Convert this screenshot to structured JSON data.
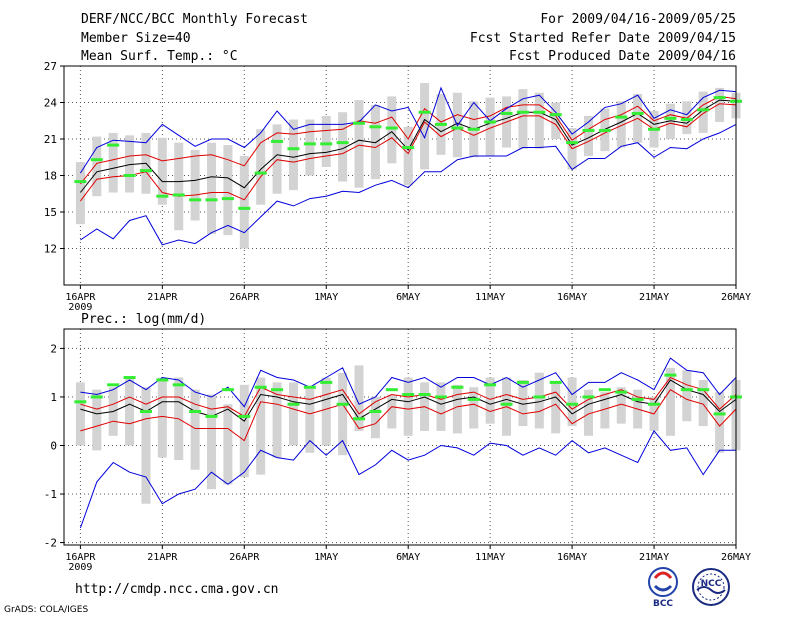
{
  "header": {
    "title": "DERF/NCC/BCC Monthly Forecast",
    "member": "Member Size=40",
    "variable": "Mean Surf. Temp.: °C",
    "period": "For 2009/04/16-2009/05/25",
    "started": "Fcst Started Refer Date 2009/04/15",
    "produced": "Fcst Produced Date 2009/04/16"
  },
  "footer": {
    "url": "http://cmdp.ncc.cma.gov.cn",
    "credit": "GrADS: COLA/IGES",
    "logo_left_text": "BCC",
    "logo_right_text": "NCC"
  },
  "colors": {
    "box": "#d3d3d3",
    "mean": "#000000",
    "spread": "#e00000",
    "envelope": "#0000dd",
    "observed": "#33ee33"
  },
  "chart_data": [
    {
      "type": "line",
      "title": "Mean Surf. Temp.: °C",
      "x_tick_labels": [
        "16APR",
        "21APR",
        "26APR",
        "1MAY",
        "6MAY",
        "11MAY",
        "16MAY",
        "21MAY",
        "26MAY"
      ],
      "x_year_label": "2009",
      "x_tick_days": [
        0,
        5,
        10,
        15,
        20,
        25,
        30,
        35,
        40
      ],
      "xlim": [
        -1,
        40
      ],
      "ylim": [
        9,
        27
      ],
      "y_ticks": [
        12,
        15,
        18,
        21,
        24,
        27
      ],
      "grid": true,
      "box_low": [
        14.0,
        16.3,
        16.6,
        16.6,
        16.5,
        15.6,
        13.5,
        14.3,
        13.2,
        13.1,
        12.0,
        15.6,
        16.5,
        16.8,
        18.0,
        18.7,
        17.5,
        17.0,
        17.7,
        19.0,
        17.2,
        18.5,
        19.7,
        19.5,
        19.5,
        19.6,
        20.3,
        20.2,
        20.2,
        21.0,
        18.5,
        19.6,
        20.0,
        20.3,
        20.7,
        20.3,
        21.0,
        21.4,
        21.5,
        22.4,
        22.7
      ],
      "box_high": [
        19.1,
        21.2,
        21.5,
        21.3,
        21.5,
        21.1,
        20.7,
        20.1,
        20.7,
        20.5,
        19.6,
        21.8,
        22.2,
        22.6,
        22.6,
        22.9,
        23.2,
        24.2,
        23.8,
        24.5,
        22.0,
        25.6,
        24.7,
        24.8,
        24.1,
        24.4,
        24.5,
        25.1,
        24.8,
        24.0,
        21.9,
        22.9,
        23.5,
        24.1,
        24.7,
        23.3,
        23.9,
        24.1,
        24.9,
        25.2,
        24.8
      ],
      "series": [
        {
          "name": "ensemble-mean",
          "color": "#000000",
          "values": [
            16.6,
            18.3,
            18.6,
            18.9,
            19.0,
            17.5,
            17.5,
            17.6,
            17.9,
            17.8,
            17.0,
            18.5,
            19.7,
            19.5,
            19.8,
            19.9,
            20.2,
            20.9,
            20.7,
            21.6,
            20.1,
            22.6,
            21.6,
            22.3,
            21.8,
            22.3,
            22.7,
            23.2,
            23.2,
            22.6,
            20.5,
            21.1,
            21.8,
            22.4,
            23.1,
            22.2,
            22.5,
            22.3,
            23.4,
            24.2,
            24.1
          ]
        },
        {
          "name": "upper-spread",
          "color": "#e00000",
          "values": [
            17.3,
            19.0,
            19.3,
            19.6,
            19.7,
            19.2,
            19.4,
            19.6,
            19.7,
            19.3,
            18.8,
            20.7,
            21.5,
            21.4,
            21.6,
            21.7,
            21.8,
            22.5,
            22.3,
            22.8,
            21.0,
            23.5,
            22.4,
            23.0,
            22.6,
            22.9,
            23.6,
            23.8,
            23.8,
            22.9,
            20.9,
            21.8,
            22.6,
            23.0,
            23.7,
            22.5,
            23.0,
            22.7,
            23.8,
            24.5,
            24.3
          ]
        },
        {
          "name": "lower-spread",
          "color": "#e00000",
          "values": [
            15.9,
            17.7,
            17.9,
            18.0,
            18.3,
            16.6,
            16.3,
            16.4,
            16.6,
            16.6,
            16.0,
            17.9,
            19.3,
            19.1,
            19.4,
            19.6,
            19.8,
            20.5,
            20.3,
            21.1,
            19.8,
            22.4,
            21.2,
            21.9,
            21.3,
            21.9,
            22.4,
            22.9,
            22.9,
            22.2,
            20.2,
            20.8,
            21.5,
            22.1,
            22.7,
            21.8,
            22.3,
            22.0,
            23.1,
            23.9,
            23.8
          ]
        },
        {
          "name": "member-max",
          "color": "#0000dd",
          "values": [
            18.2,
            20.3,
            20.9,
            20.8,
            20.7,
            22.2,
            21.3,
            20.4,
            21.0,
            21.0,
            20.3,
            21.5,
            23.3,
            21.8,
            22.2,
            22.2,
            22.2,
            22.4,
            23.8,
            23.3,
            23.6,
            21.1,
            25.2,
            22.1,
            24.0,
            22.5,
            23.5,
            24.3,
            24.6,
            23.2,
            21.4,
            22.4,
            23.6,
            23.9,
            24.6,
            22.7,
            23.4,
            23.0,
            24.4,
            25.0,
            24.9
          ]
        },
        {
          "name": "member-min",
          "color": "#0000dd",
          "values": [
            12.7,
            13.6,
            12.8,
            14.3,
            14.7,
            12.3,
            12.7,
            12.4,
            13.3,
            13.9,
            13.3,
            14.6,
            15.9,
            15.5,
            16.1,
            16.3,
            16.7,
            16.6,
            17.2,
            17.6,
            17.0,
            18.3,
            18.3,
            19.3,
            19.6,
            19.6,
            19.6,
            20.3,
            20.3,
            20.4,
            18.5,
            19.4,
            19.4,
            20.4,
            20.7,
            19.5,
            20.3,
            20.2,
            21.0,
            21.5,
            22.2
          ]
        }
      ],
      "observed": [
        17.5,
        19.3,
        20.5,
        18.0,
        18.4,
        16.3,
        16.4,
        16.0,
        16.0,
        16.1,
        15.3,
        18.2,
        20.8,
        20.2,
        20.6,
        20.6,
        20.7,
        22.3,
        22.0,
        21.9,
        20.3,
        23.2,
        22.2,
        21.9,
        21.8,
        22.4,
        23.1,
        23.2,
        23.2,
        23.0,
        20.7,
        21.7,
        21.7,
        22.8,
        23.1,
        21.8,
        22.7,
        22.6,
        23.4,
        24.4,
        24.1
      ]
    },
    {
      "type": "line",
      "title": "Prec.: log(mm/d)",
      "x_tick_labels": [
        "16APR",
        "21APR",
        "26APR",
        "1MAY",
        "6MAY",
        "11MAY",
        "16MAY",
        "21MAY",
        "26MAY"
      ],
      "x_year_label": "2009",
      "x_tick_days": [
        0,
        5,
        10,
        15,
        20,
        25,
        30,
        35,
        40
      ],
      "xlim": [
        -1,
        40
      ],
      "ylim": [
        -2.05,
        2.4
      ],
      "y_ticks": [
        -2,
        -1,
        0,
        1,
        2
      ],
      "grid": true,
      "box_low": [
        0.0,
        -0.1,
        0.2,
        0.0,
        -1.2,
        -0.25,
        -0.3,
        -0.5,
        -0.9,
        -0.8,
        -0.65,
        -0.6,
        -0.25,
        0.0,
        -0.15,
        0.0,
        -0.2,
        0.3,
        0.15,
        0.35,
        0.2,
        0.3,
        0.3,
        0.25,
        0.35,
        0.45,
        0.2,
        0.4,
        0.35,
        0.25,
        0.4,
        0.2,
        0.35,
        0.45,
        0.35,
        0.3,
        0.2,
        0.5,
        0.4,
        -0.15,
        -0.1
      ],
      "box_high": [
        1.3,
        1.15,
        1.2,
        1.4,
        1.2,
        1.4,
        1.4,
        1.15,
        1.05,
        0.85,
        1.25,
        1.4,
        1.3,
        1.3,
        1.2,
        1.4,
        1.5,
        1.65,
        1.0,
        1.05,
        1.4,
        1.3,
        1.3,
        1.25,
        1.2,
        1.4,
        1.4,
        1.35,
        1.5,
        1.3,
        1.4,
        1.15,
        1.1,
        1.2,
        1.15,
        1.0,
        1.6,
        1.55,
        1.35,
        1.1,
        1.35
      ],
      "series": [
        {
          "name": "ensemble-mean",
          "color": "#000000",
          "values": [
            0.75,
            0.65,
            0.7,
            0.85,
            0.7,
            0.9,
            0.9,
            0.7,
            0.6,
            0.75,
            0.5,
            1.05,
            1.0,
            0.9,
            0.85,
            0.95,
            1.05,
            0.55,
            0.75,
            0.95,
            0.9,
            1.0,
            0.85,
            0.95,
            1.0,
            0.85,
            0.95,
            0.85,
            0.9,
            1.0,
            0.65,
            0.85,
            0.95,
            1.05,
            0.9,
            0.85,
            1.35,
            1.15,
            1.05,
            0.7,
            0.95
          ]
        },
        {
          "name": "upper-spread",
          "color": "#e00000",
          "values": [
            0.85,
            0.75,
            0.85,
            1.0,
            0.85,
            1.0,
            1.0,
            0.85,
            0.75,
            0.8,
            0.6,
            1.2,
            1.05,
            1.0,
            0.95,
            1.05,
            1.15,
            0.65,
            0.9,
            1.05,
            1.0,
            1.05,
            0.95,
            1.05,
            1.1,
            0.95,
            1.05,
            0.95,
            1.0,
            1.1,
            0.75,
            0.95,
            1.05,
            1.15,
            1.0,
            0.95,
            1.4,
            1.25,
            1.15,
            0.75,
            1.05
          ]
        },
        {
          "name": "lower-spread",
          "color": "#e00000",
          "values": [
            0.3,
            0.4,
            0.5,
            0.45,
            0.55,
            0.6,
            0.55,
            0.35,
            0.35,
            0.35,
            0.1,
            0.9,
            0.85,
            0.75,
            0.65,
            0.75,
            0.85,
            0.35,
            0.45,
            0.8,
            0.75,
            0.8,
            0.65,
            0.8,
            0.85,
            0.7,
            0.8,
            0.65,
            0.7,
            0.85,
            0.45,
            0.65,
            0.75,
            0.85,
            0.75,
            0.65,
            1.15,
            0.95,
            0.85,
            0.4,
            0.75
          ]
        },
        {
          "name": "member-max",
          "color": "#0000dd",
          "values": [
            1.1,
            1.05,
            1.15,
            1.35,
            1.15,
            1.4,
            1.35,
            1.1,
            1.0,
            1.2,
            0.8,
            1.55,
            1.4,
            1.35,
            1.2,
            1.4,
            1.6,
            0.85,
            1.0,
            1.4,
            1.3,
            1.4,
            1.2,
            1.4,
            1.4,
            1.25,
            1.4,
            1.2,
            1.35,
            1.5,
            1.05,
            1.3,
            1.3,
            1.5,
            1.35,
            1.15,
            1.8,
            1.55,
            1.5,
            1.05,
            1.4
          ]
        },
        {
          "name": "member-min",
          "color": "#0000dd",
          "values": [
            -1.7,
            -0.75,
            -0.35,
            -0.55,
            -0.65,
            -1.2,
            -1.0,
            -0.9,
            -0.55,
            -0.8,
            -0.55,
            -0.1,
            -0.25,
            -0.3,
            0.1,
            -0.2,
            0.1,
            -0.6,
            -0.4,
            -0.1,
            -0.3,
            -0.2,
            0.0,
            -0.05,
            -0.2,
            0.05,
            0.0,
            -0.2,
            -0.05,
            -0.2,
            0.1,
            -0.15,
            -0.05,
            -0.2,
            -0.35,
            0.3,
            -0.1,
            -0.05,
            -0.6,
            -0.1,
            -0.1
          ]
        }
      ],
      "observed": [
        0.9,
        1.0,
        1.25,
        1.4,
        0.7,
        1.35,
        1.25,
        0.7,
        0.6,
        1.15,
        0.6,
        1.2,
        1.15,
        0.85,
        1.2,
        1.3,
        0.85,
        0.55,
        0.7,
        1.15,
        1.05,
        1.05,
        1.0,
        1.2,
        0.95,
        1.25,
        0.85,
        1.3,
        1.0,
        1.3,
        0.85,
        1.0,
        1.15,
        1.1,
        0.95,
        0.85,
        1.45,
        1.15,
        1.15,
        0.65,
        1.0
      ]
    }
  ]
}
